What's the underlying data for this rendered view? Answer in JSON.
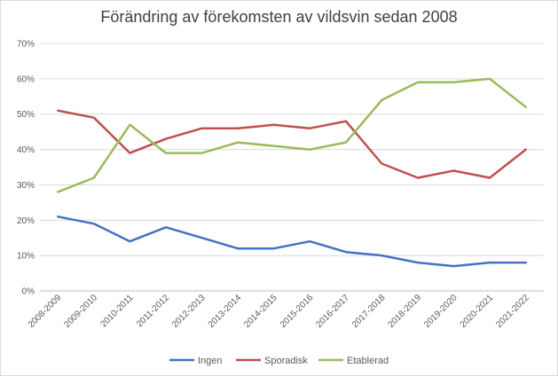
{
  "chart_data": {
    "type": "line",
    "title": "Förändring av förekomsten av vildsvin sedan 2008",
    "xlabel": "",
    "ylabel": "",
    "categories": [
      "2008-2009",
      "2009-2010",
      "2010-2011",
      "2011-2012",
      "2012-2013",
      "2013-2014",
      "2014-2015",
      "2015-2016",
      "2016-2017",
      "2017-2018",
      "2018-2019",
      "2019-2020",
      "2020-2021",
      "2021-2022"
    ],
    "ylim": [
      0,
      70
    ],
    "yticks": [
      0,
      10,
      20,
      30,
      40,
      50,
      60,
      70
    ],
    "ytick_suffix": "%",
    "grid": true,
    "legend_position": "bottom",
    "series": [
      {
        "name": "Ingen",
        "color": "#4472c4",
        "values": [
          21,
          19,
          14,
          18,
          15,
          12,
          12,
          14,
          11,
          10,
          8,
          7,
          8,
          8
        ]
      },
      {
        "name": "Sporadisk",
        "color": "#c0504d",
        "values": [
          51,
          49,
          39,
          43,
          46,
          46,
          47,
          46,
          48,
          36,
          32,
          34,
          32,
          40
        ]
      },
      {
        "name": "Etablerad",
        "color": "#9bbb59",
        "values": [
          28,
          32,
          47,
          39,
          39,
          42,
          41,
          40,
          42,
          54,
          59,
          59,
          60,
          52
        ]
      }
    ]
  }
}
